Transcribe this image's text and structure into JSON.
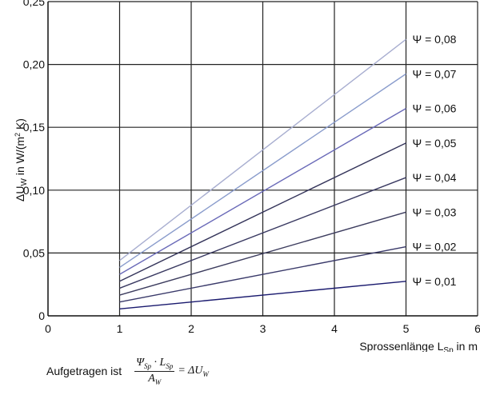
{
  "chart_data": {
    "type": "line",
    "title": "",
    "xlabel": "Sprossenlänge L_Sp in m",
    "xlabel_main": "Sprossenlänge L",
    "xlabel_sub": "Sp",
    "xlabel_tail": " in m",
    "ylabel": "ΔU_W in W/(m² K)",
    "ylabel_main": "ΔU",
    "ylabel_sub": "W",
    "ylabel_tail": " in W/(m",
    "ylabel_sup": "2",
    "ylabel_end": " K)",
    "xlim": [
      0,
      6
    ],
    "ylim": [
      0,
      0.25
    ],
    "x_ticks": [
      "0",
      "1",
      "2",
      "3",
      "4",
      "5",
      "6"
    ],
    "y_ticks": [
      "0",
      "0,05",
      "0,10",
      "0,15",
      "0,20",
      "0,25"
    ],
    "grid": true,
    "x": [
      1,
      5
    ],
    "series": [
      {
        "name": "Ψ = 0,01",
        "psi": 0.01,
        "values": [
          0.0055,
          0.0275
        ],
        "color": "#1a1a6e"
      },
      {
        "name": "Ψ = 0,02",
        "psi": 0.02,
        "values": [
          0.011,
          0.055
        ],
        "color": "#3a3a6a"
      },
      {
        "name": "Ψ = 0,03",
        "psi": 0.03,
        "values": [
          0.0165,
          0.0825
        ],
        "color": "#3c3c5e"
      },
      {
        "name": "Ψ = 0,04",
        "psi": 0.04,
        "values": [
          0.022,
          0.11
        ],
        "color": "#3a3a62"
      },
      {
        "name": "Ψ = 0,05",
        "psi": 0.05,
        "values": [
          0.0275,
          0.1375
        ],
        "color": "#34345a"
      },
      {
        "name": "Ψ = 0,06",
        "psi": 0.06,
        "values": [
          0.033,
          0.165
        ],
        "color": "#6a6ab8"
      },
      {
        "name": "Ψ = 0,07",
        "psi": 0.07,
        "values": [
          0.0385,
          0.1925
        ],
        "color": "#8a9ccc"
      },
      {
        "name": "Ψ = 0,08",
        "psi": 0.08,
        "values": [
          0.044,
          0.22
        ],
        "color": "#a8aed0"
      }
    ],
    "legend_position": "inline-right"
  },
  "footer": {
    "prefix": "Aufgetragen ist",
    "numerator": "Ψ",
    "numerator_sub1": "Sp",
    "numerator_mid": " · L",
    "numerator_sub2": "Sp",
    "denominator": "A",
    "denominator_sub": "W",
    "rhs": "= ΔU",
    "rhs_sub": "W"
  }
}
